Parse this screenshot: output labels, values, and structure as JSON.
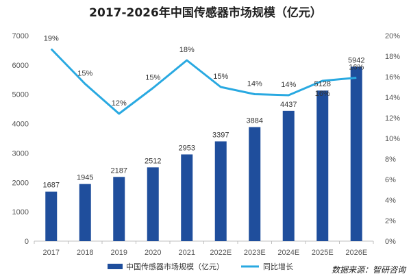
{
  "chart_data": {
    "type": "bar",
    "title": "2017-2026年中国传感器市场规模（亿元）",
    "categories": [
      "2017",
      "2018",
      "2019",
      "2020",
      "2021",
      "2022E",
      "2023E",
      "2024E",
      "2025E",
      "2026E"
    ],
    "series": [
      {
        "name": "中国传感器市场规模（亿元）",
        "type": "bar",
        "axis": "left",
        "color": "#1f4e9c",
        "values": [
          1687,
          1945,
          2187,
          2512,
          2953,
          3397,
          3884,
          4437,
          5128,
          5942
        ],
        "labels": [
          "1687",
          "1945",
          "2187",
          "2512",
          "2953",
          "3397",
          "3884",
          "4437",
          "5128",
          "5942"
        ]
      },
      {
        "name": "同比增长",
        "type": "line",
        "axis": "right",
        "color": "#29a9e1",
        "values": [
          18.7,
          15.3,
          12.4,
          14.9,
          17.6,
          15.0,
          14.3,
          14.2,
          15.6,
          15.9
        ],
        "labels": [
          "19%",
          "15%",
          "12%",
          "15%",
          "18%",
          "15%",
          "14%",
          "14%",
          "16%",
          "16%"
        ]
      }
    ],
    "y_left": {
      "ylim": [
        0,
        7000
      ],
      "ticks": [
        "0",
        "1000",
        "2000",
        "3000",
        "4000",
        "5000",
        "6000",
        "7000"
      ]
    },
    "y_right": {
      "ylim": [
        0,
        20
      ],
      "ticks": [
        "0%",
        "2%",
        "4%",
        "6%",
        "8%",
        "10%",
        "12%",
        "14%",
        "16%",
        "18%",
        "20%"
      ]
    },
    "grid": false,
    "legend": "bottom-center"
  },
  "source_note": "数据来源：智研咨询"
}
